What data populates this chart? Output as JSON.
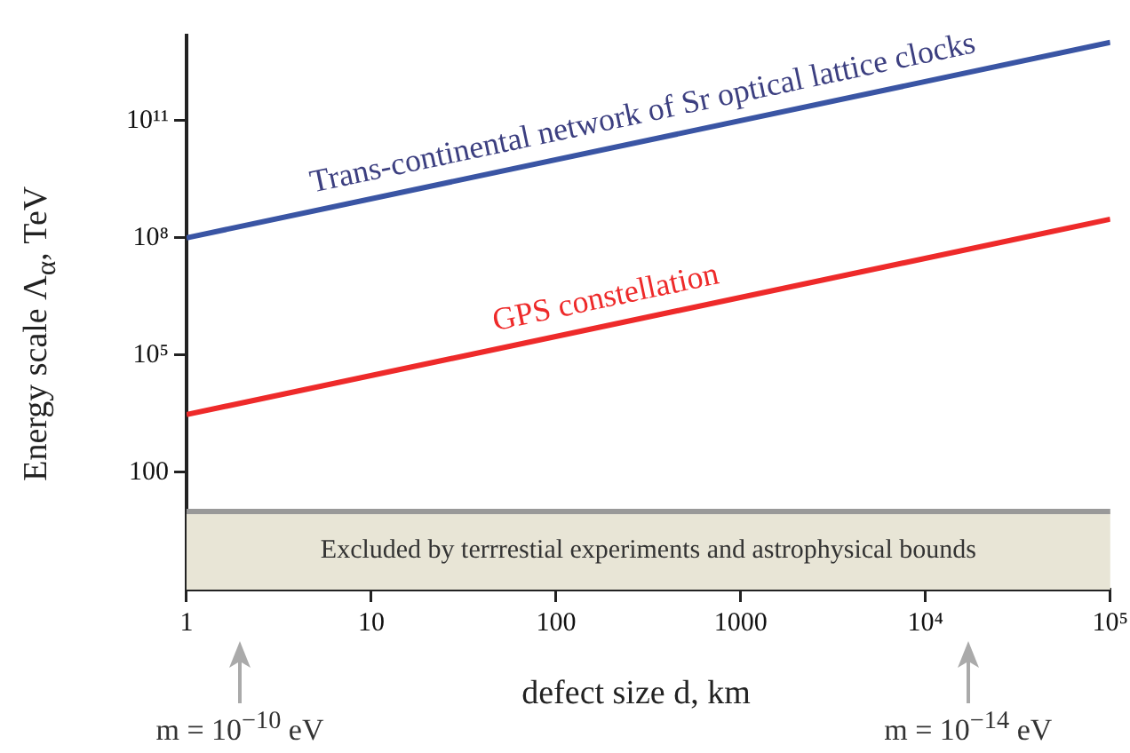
{
  "chart_data": {
    "type": "line",
    "xlabel": "defect size d, km",
    "ylabel": "Energy scale Λ$_{α}$, TeV",
    "log": "xy",
    "grid": false,
    "legend": false,
    "marker": "none",
    "line_style": "solid",
    "x": [
      1,
      100000
    ],
    "xlim": [
      1,
      100000
    ],
    "xticks": [
      1,
      10,
      100,
      1000,
      {
        "value": 10000,
        "label": "10⁴"
      },
      {
        "value": 100000,
        "label": "10⁵"
      }
    ],
    "ylim": [
      0.1,
      15000000000000
    ],
    "yticks": [
      100,
      {
        "value": 100000,
        "label": "10⁵"
      },
      {
        "value": 100000000,
        "label": "10⁸"
      },
      {
        "value": 100000000000,
        "label": "10¹¹"
      }
    ],
    "series": [
      {
        "name": "Trans-continental network of Sr optical lattice clocks",
        "color": "#3a55a4",
        "values": [
          100000000,
          10000000000000
        ]
      },
      {
        "name": "GPS constellation",
        "color": "#ee2a2a",
        "values": [
          3000,
          300000000
        ]
      }
    ],
    "bands": [
      {
        "axis": "y",
        "from": 0.1,
        "to": 10,
        "label": "Excluded by terrrestial experiments and astrophysical bounds",
        "color": "#e8e5d6"
      }
    ],
    "ref_lines": [
      {
        "axis": "y",
        "value": 10,
        "color": "#999999"
      }
    ],
    "annotations": [
      "m = 10$^{−10}$ eV",
      "m = 10$^{−14}$ eV"
    ]
  }
}
